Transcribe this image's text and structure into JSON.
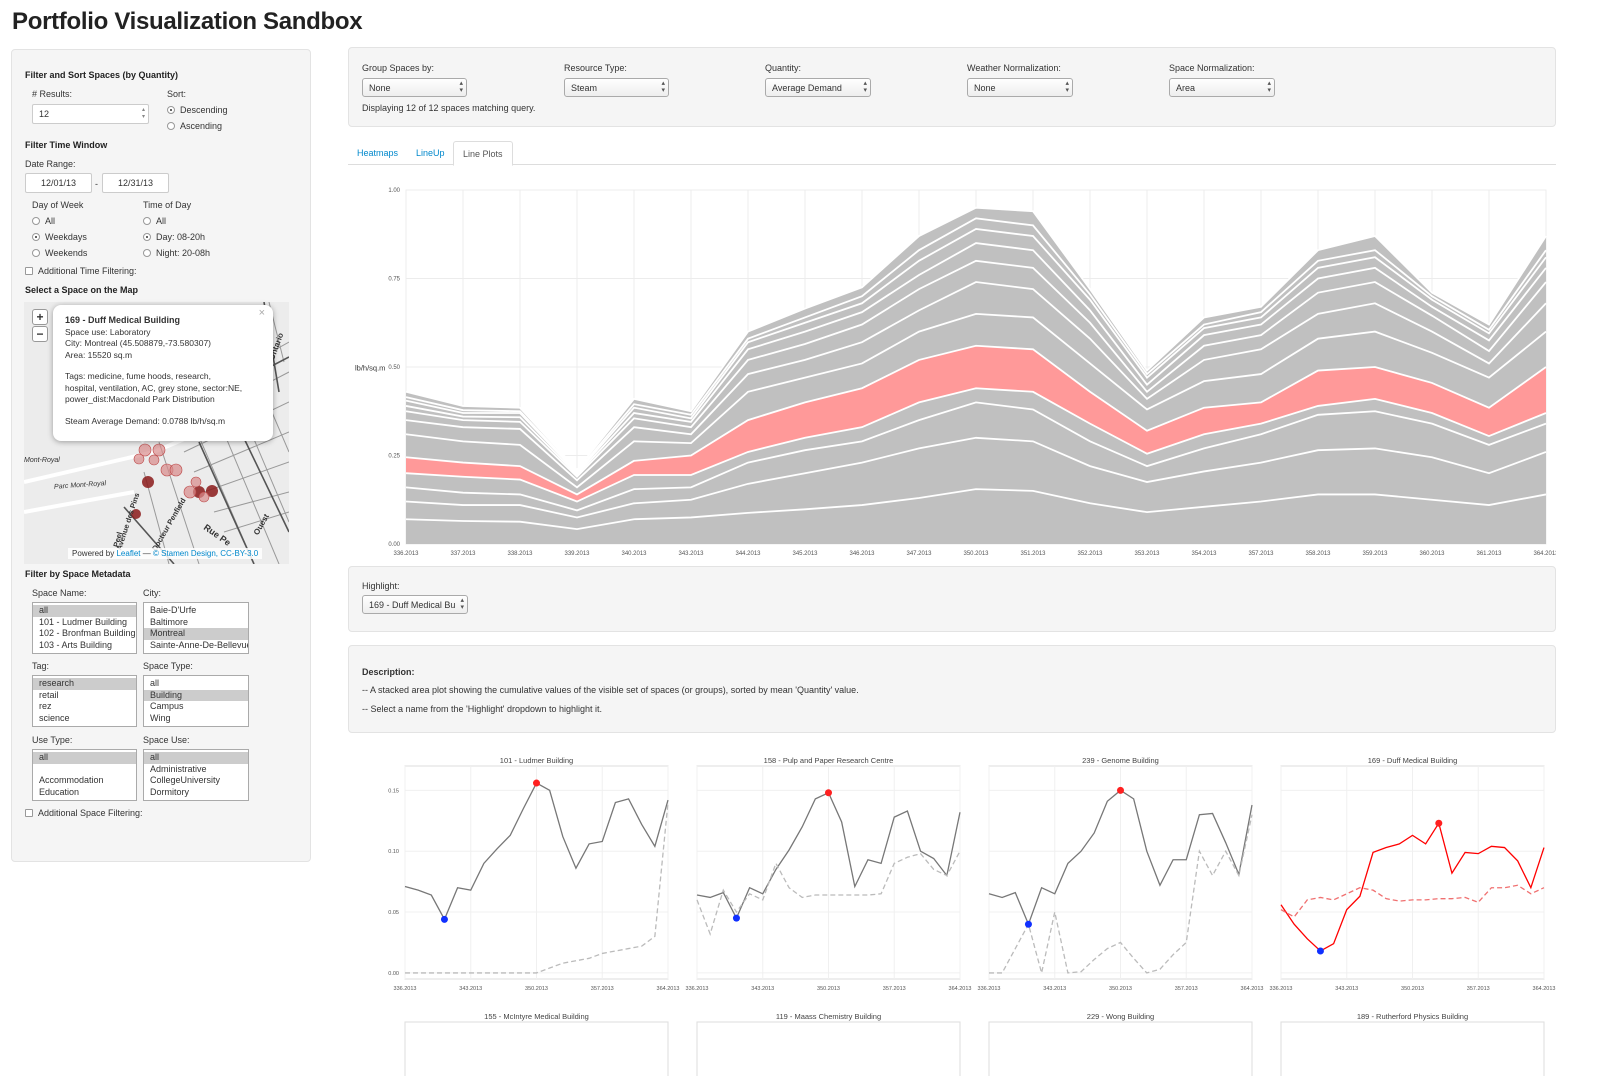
{
  "page": {
    "title": "Portfolio Visualization Sandbox"
  },
  "sidebar": {
    "filter_sort_heading": "Filter and Sort Spaces (by Quantity)",
    "results_label": "# Results:",
    "results_value": "12",
    "sort_label": "Sort:",
    "sort_options": [
      "Descending",
      "Ascending"
    ],
    "sort_selected": "Descending",
    "time_heading": "Filter Time Window",
    "date_range_label": "Date Range:",
    "date_start": "12/01/13",
    "date_sep": "-",
    "date_end": "12/31/13",
    "dow_label": "Day of Week",
    "dow_options": [
      "All",
      "Weekdays",
      "Weekends"
    ],
    "dow_selected": "Weekdays",
    "tod_label": "Time of Day",
    "tod_options": [
      "All",
      "Day: 08-20h",
      "Night: 20-08h"
    ],
    "tod_selected": "Day: 08-20h",
    "additional_time": "Additional Time Filtering:",
    "map_heading": "Select a Space on the Map",
    "map": {
      "zoom_in": "+",
      "zoom_out": "−",
      "close": "×",
      "labels": [
        "Mont-Royal",
        "Parc Mont-Royal",
        "Rue Pe",
        "Ouest",
        "Ontario",
        "Peel",
        "Docteur Penfield",
        "Avenue des Pins"
      ],
      "attribution_prefix": "Powered by",
      "attribution_leaflet": "Leaflet",
      "attribution_sep": "—",
      "attribution_rest": "© Stamen Design, CC-BY-3.0",
      "popup": {
        "title": "169 - Duff Medical Building",
        "lines": [
          "Space use: Laboratory",
          "City: Montreal (45.508879,-73.580307)",
          "Area: 15520 sq.m",
          "",
          "Tags: medicine, fume hoods, research,",
          "hospital, ventilation, AC, grey stone, sector:NE,",
          "power_dist:Macdonald Park Distribution",
          "",
          "Steam Average Demand: 0.0788 lb/h/sq.m"
        ]
      }
    },
    "metadata_heading": "Filter by Space Metadata",
    "space_name": {
      "label": "Space Name:",
      "items": [
        "all",
        "101 - Ludmer Building",
        "102 - Bronfman Building",
        "103 - Arts Building"
      ],
      "selected": 0
    },
    "city": {
      "label": "City:",
      "items": [
        "Baie-D'Urfe",
        "Baltimore",
        "Montreal",
        "Sainte-Anne-De-Bellevue"
      ],
      "selected": 2
    },
    "tag": {
      "label": "Tag:",
      "items": [
        "research",
        "retail",
        "rez",
        "science"
      ],
      "selected": 0
    },
    "space_type": {
      "label": "Space Type:",
      "items": [
        "all",
        "Building",
        "Campus",
        "Wing"
      ],
      "selected": 1
    },
    "use_type": {
      "label": "Use Type:",
      "items": [
        "all",
        "",
        "Accommodation",
        "Education"
      ],
      "selected": 0
    },
    "space_use": {
      "label": "Space Use:",
      "items": [
        "all",
        "Administrative",
        "CollegeUniversity",
        "Dormitory"
      ],
      "selected": 0
    },
    "additional_space": "Additional Space Filtering:"
  },
  "controls": {
    "group_label": "Group Spaces by:",
    "group_value": "None",
    "resource_label": "Resource Type:",
    "resource_value": "Steam",
    "quantity_label": "Quantity:",
    "quantity_value": "Average Demand",
    "weather_label": "Weather Normalization:",
    "weather_value": "None",
    "space_norm_label": "Space Normalization:",
    "space_norm_value": "Area",
    "status": "Displaying 12 of 12 spaces matching query."
  },
  "tabs": [
    {
      "label": "Heatmaps",
      "active": false
    },
    {
      "label": "LineUp",
      "active": false
    },
    {
      "label": "Line Plots",
      "active": true
    }
  ],
  "highlight": {
    "label": "Highlight:",
    "value": "169 - Duff Medical Bu"
  },
  "description": {
    "heading": "Description:",
    "line1": "-- A stacked area plot showing the cumulative values of the visible set of spaces (or groups), sorted by mean 'Quantity' value.",
    "line2": "-- Select a name from the 'Highlight' dropdown to highlight it."
  },
  "colors": {
    "area_fill": "#c0c0c0",
    "highlight_fill": "#ff9999",
    "highlight_line": "#ff0000",
    "max_dot": "#ff2020",
    "min_dot": "#1030ff",
    "link": "#0088cc"
  },
  "chart_data": [
    {
      "type": "area",
      "stacked": true,
      "ylabel": "lb/h/sq.m",
      "ylim": [
        0,
        1
      ],
      "ytick_labels": [
        "0.00",
        "0.25",
        "0.50",
        "0.75",
        "1.00"
      ],
      "yticks": [
        0,
        0.25,
        0.5,
        0.75,
        1.0
      ],
      "x_labels": [
        "336.2013",
        "337.2013",
        "338.2013",
        "339.2013",
        "340.2013",
        "343.2013",
        "344.2013",
        "345.2013",
        "346.2013",
        "347.2013",
        "350.2013",
        "351.2013",
        "352.2013",
        "353.2013",
        "354.2013",
        "357.2013",
        "358.2013",
        "359.2013",
        "360.2013",
        "361.2013",
        "364.2013"
      ],
      "grid": true,
      "highlight_series_index": 4,
      "cumulative_series": [
        [
          0.07,
          0.065,
          0.063,
          0.042,
          0.07,
          0.075,
          0.088,
          0.098,
          0.11,
          0.13,
          0.155,
          0.15,
          0.115,
          0.09,
          0.105,
          0.12,
          0.14,
          0.14,
          0.125,
          0.11,
          0.14
        ],
        [
          0.12,
          0.11,
          0.11,
          0.075,
          0.115,
          0.125,
          0.17,
          0.2,
          0.23,
          0.27,
          0.3,
          0.29,
          0.22,
          0.175,
          0.205,
          0.23,
          0.265,
          0.27,
          0.245,
          0.2,
          0.26
        ],
        [
          0.16,
          0.145,
          0.14,
          0.095,
          0.155,
          0.16,
          0.23,
          0.265,
          0.29,
          0.35,
          0.4,
          0.38,
          0.29,
          0.22,
          0.27,
          0.31,
          0.365,
          0.375,
          0.34,
          0.28,
          0.34
        ],
        [
          0.2,
          0.19,
          0.182,
          0.12,
          0.195,
          0.195,
          0.26,
          0.3,
          0.33,
          0.4,
          0.44,
          0.43,
          0.34,
          0.255,
          0.31,
          0.34,
          0.39,
          0.41,
          0.37,
          0.305,
          0.37
        ],
        [
          0.245,
          0.23,
          0.22,
          0.14,
          0.235,
          0.25,
          0.35,
          0.4,
          0.44,
          0.52,
          0.56,
          0.55,
          0.43,
          0.32,
          0.385,
          0.4,
          0.49,
          0.5,
          0.455,
          0.385,
          0.5
        ],
        [
          0.31,
          0.29,
          0.28,
          0.16,
          0.29,
          0.285,
          0.43,
          0.47,
          0.51,
          0.6,
          0.65,
          0.64,
          0.51,
          0.38,
          0.46,
          0.48,
          0.58,
          0.6,
          0.54,
          0.47,
          0.6
        ],
        [
          0.35,
          0.33,
          0.325,
          0.18,
          0.33,
          0.31,
          0.48,
          0.52,
          0.57,
          0.66,
          0.74,
          0.72,
          0.58,
          0.41,
          0.52,
          0.55,
          0.65,
          0.68,
          0.6,
          0.51,
          0.68
        ],
        [
          0.375,
          0.35,
          0.345,
          0.19,
          0.355,
          0.33,
          0.52,
          0.565,
          0.62,
          0.72,
          0.8,
          0.78,
          0.625,
          0.43,
          0.56,
          0.59,
          0.71,
          0.74,
          0.645,
          0.545,
          0.74
        ],
        [
          0.39,
          0.36,
          0.358,
          0.195,
          0.37,
          0.345,
          0.55,
          0.6,
          0.655,
          0.76,
          0.85,
          0.83,
          0.66,
          0.45,
          0.59,
          0.62,
          0.75,
          0.78,
          0.67,
          0.575,
          0.78
        ],
        [
          0.405,
          0.37,
          0.37,
          0.2,
          0.385,
          0.355,
          0.57,
          0.625,
          0.68,
          0.8,
          0.89,
          0.87,
          0.69,
          0.47,
          0.61,
          0.64,
          0.78,
          0.81,
          0.69,
          0.595,
          0.81
        ],
        [
          0.415,
          0.378,
          0.375,
          0.205,
          0.395,
          0.365,
          0.58,
          0.64,
          0.7,
          0.83,
          0.92,
          0.9,
          0.705,
          0.48,
          0.62,
          0.655,
          0.8,
          0.83,
          0.7,
          0.605,
          0.83
        ],
        [
          0.43,
          0.39,
          0.385,
          0.21,
          0.41,
          0.375,
          0.6,
          0.665,
          0.725,
          0.87,
          0.95,
          0.94,
          0.72,
          0.49,
          0.64,
          0.67,
          0.83,
          0.87,
          0.71,
          0.62,
          0.87
        ]
      ]
    },
    {
      "type": "line",
      "title": "101 - Ludmer Building",
      "x_ticks": [
        "336.2013",
        "343.2013",
        "350.2013",
        "357.2013",
        "364.2013"
      ],
      "ytick_labels": [
        "0.00",
        "0.05",
        "0.10",
        "0.15"
      ],
      "yticks": [
        0,
        0.05,
        0.1,
        0.15
      ],
      "ylim": [
        -0.005,
        0.17
      ],
      "series": [
        {
          "style": "solid",
          "values": [
            0.071,
            0.068,
            0.064,
            0.044,
            0.07,
            0.068,
            0.09,
            0.102,
            0.113,
            0.135,
            0.156,
            0.15,
            0.112,
            0.086,
            0.106,
            0.108,
            0.14,
            0.143,
            0.122,
            0.104,
            0.142
          ]
        },
        {
          "style": "dashed",
          "values": [
            0,
            0,
            0,
            0,
            0,
            0,
            0,
            0,
            0,
            0,
            0,
            0.004,
            0.008,
            0.01,
            0.012,
            0.016,
            0.018,
            0.02,
            0.022,
            0.03,
            0.14
          ]
        }
      ],
      "max_index": 10,
      "min_index": 3,
      "highlighted": false
    },
    {
      "type": "line",
      "title": "158 - Pulp and Paper Research Centre",
      "x_ticks": [
        "336.2013",
        "343.2013",
        "350.2013",
        "357.2013",
        "364.2013"
      ],
      "ylim": [
        -0.005,
        0.17
      ],
      "series": [
        {
          "style": "solid",
          "values": [
            0.064,
            0.062,
            0.066,
            0.045,
            0.07,
            0.065,
            0.085,
            0.101,
            0.12,
            0.143,
            0.148,
            0.124,
            0.071,
            0.093,
            0.09,
            0.128,
            0.133,
            0.1,
            0.094,
            0.08,
            0.132
          ]
        },
        {
          "style": "dashed",
          "values": [
            0.06,
            0.032,
            0.068,
            0.05,
            0.065,
            0.06,
            0.09,
            0.07,
            0.062,
            0.064,
            0.064,
            0.064,
            0.064,
            0.064,
            0.065,
            0.09,
            0.095,
            0.098,
            0.085,
            0.08,
            0.1
          ]
        }
      ],
      "max_index": 10,
      "min_index": 3,
      "highlighted": false
    },
    {
      "type": "line",
      "title": "239 - Genome Building",
      "x_ticks": [
        "336.2013",
        "343.2013",
        "350.2013",
        "357.2013",
        "364.2013"
      ],
      "ylim": [
        -0.005,
        0.17
      ],
      "series": [
        {
          "style": "solid",
          "values": [
            0.065,
            0.062,
            0.066,
            0.04,
            0.07,
            0.065,
            0.09,
            0.1,
            0.115,
            0.141,
            0.15,
            0.143,
            0.1,
            0.072,
            0.093,
            0.093,
            0.13,
            0.131,
            0.107,
            0.081,
            0.138
          ]
        },
        {
          "style": "dashed",
          "values": [
            0,
            0,
            0.02,
            0.04,
            0,
            0.05,
            0,
            0.001,
            0.011,
            0.02,
            0.025,
            0.012,
            0,
            0.003,
            0.015,
            0.025,
            0.1,
            0.08,
            0.1,
            0.08,
            0.13
          ]
        }
      ],
      "max_index": 10,
      "min_index": 3,
      "highlighted": false
    },
    {
      "type": "line",
      "title": "169 - Duff Medical Building",
      "x_ticks": [
        "336.2013",
        "343.2013",
        "350.2013",
        "357.2013",
        "364.2013"
      ],
      "ylim": [
        -0.005,
        0.17
      ],
      "series": [
        {
          "style": "solid",
          "values": [
            0.056,
            0.04,
            0.028,
            0.018,
            0.024,
            0.052,
            0.063,
            0.099,
            0.103,
            0.106,
            0.113,
            0.106,
            0.123,
            0.082,
            0.099,
            0.098,
            0.104,
            0.103,
            0.092,
            0.07,
            0.103
          ]
        },
        {
          "style": "dashed",
          "values": [
            0.052,
            0.046,
            0.06,
            0.062,
            0.06,
            0.065,
            0.07,
            0.068,
            0.061,
            0.059,
            0.06,
            0.06,
            0.061,
            0.061,
            0.062,
            0.058,
            0.07,
            0.07,
            0.072,
            0.065,
            0.07
          ]
        }
      ],
      "max_index": 12,
      "min_index": 3,
      "highlighted": true
    },
    {
      "type": "line",
      "title": "155 - McIntyre Medical Building"
    },
    {
      "type": "line",
      "title": "119 - Maass Chemistry Building"
    },
    {
      "type": "line",
      "title": "229 - Wong Building"
    },
    {
      "type": "line",
      "title": "189 - Rutherford Physics Building"
    }
  ]
}
